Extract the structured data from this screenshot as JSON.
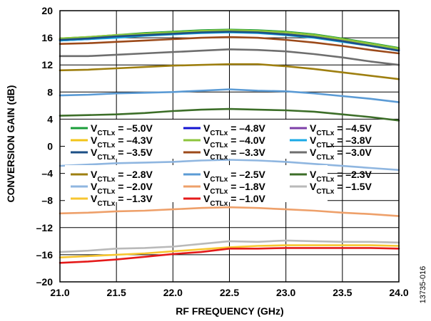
{
  "chart_data": {
    "type": "line",
    "title": "",
    "xlabel": "RF FREQUENCY (GHz)",
    "ylabel": "CONVERSION GAIN (dB)",
    "xlim": [
      21.0,
      24.0
    ],
    "ylim": [
      -20,
      20
    ],
    "x_ticks": [
      "21.0",
      "21.5",
      "22.0",
      "22.5",
      "23.0",
      "23.5",
      "24.0"
    ],
    "y_ticks": [
      "20",
      "16",
      "12",
      "8",
      "4",
      "0",
      "–4",
      "–8",
      "–12",
      "–16",
      "–20"
    ],
    "grid": true,
    "legend_placement": "center",
    "figure_id": "13735-016",
    "x": [
      21.0,
      21.25,
      21.5,
      21.75,
      22.0,
      22.25,
      22.5,
      22.75,
      23.0,
      23.25,
      23.5,
      23.75,
      24.0
    ],
    "series": [
      {
        "name": "V",
        "sub": "CTLx",
        "value": " = –5.0V",
        "color": "#1a9e3a",
        "values": [
          15.9,
          16.1,
          16.4,
          16.7,
          16.9,
          17.1,
          17.2,
          17.1,
          16.9,
          16.5,
          15.9,
          15.2,
          14.5
        ]
      },
      {
        "name": "V",
        "sub": "CTLx",
        "value": " = –4.8V",
        "color": "#1414d2",
        "values": [
          15.6,
          15.8,
          16.1,
          16.4,
          16.6,
          16.8,
          16.9,
          16.8,
          16.6,
          16.2,
          15.6,
          14.9,
          14.2
        ]
      },
      {
        "name": "V",
        "sub": "CTLx",
        "value": " = –4.5V",
        "color": "#7e3fa8",
        "values": [
          15.7,
          15.9,
          16.2,
          16.5,
          16.7,
          16.9,
          17.0,
          16.9,
          16.7,
          16.3,
          15.7,
          15.0,
          14.3
        ]
      },
      {
        "name": "V",
        "sub": "CTLx",
        "value": " = –4.3V",
        "color": "#f2c419",
        "values": [
          15.8,
          16.0,
          16.3,
          16.6,
          16.8,
          17.0,
          17.1,
          17.0,
          16.8,
          16.4,
          15.8,
          15.1,
          14.4
        ]
      },
      {
        "name": "V",
        "sub": "CTLx",
        "value": " = –4.0V",
        "color": "#8cc43c",
        "values": [
          15.9,
          16.1,
          16.4,
          16.6,
          16.8,
          17.0,
          17.1,
          17.0,
          16.8,
          16.4,
          15.8,
          15.1,
          14.4
        ]
      },
      {
        "name": "V",
        "sub": "CTLx",
        "value": " = –3.8V",
        "color": "#1aa9e6",
        "values": [
          15.6,
          15.8,
          16.0,
          16.3,
          16.5,
          16.7,
          16.8,
          16.7,
          16.4,
          16.0,
          15.4,
          14.8,
          14.1
        ]
      },
      {
        "name": "V",
        "sub": "CTLx",
        "value": " = –3.5V",
        "color": "#1c4f86",
        "values": [
          15.7,
          15.9,
          16.2,
          16.4,
          16.6,
          16.8,
          16.9,
          16.8,
          16.5,
          16.1,
          15.5,
          14.8,
          14.1
        ]
      },
      {
        "name": "V",
        "sub": "CTLx",
        "value": " = –3.3V",
        "color": "#9c4a1a",
        "values": [
          15.1,
          15.2,
          15.4,
          15.6,
          15.8,
          16.0,
          16.1,
          16.0,
          15.7,
          15.3,
          14.8,
          14.2,
          13.7
        ]
      },
      {
        "name": "V",
        "sub": "CTLx",
        "value": " = –3.0V",
        "color": "#6e6e6e",
        "values": [
          13.3,
          13.3,
          13.5,
          13.7,
          13.9,
          14.1,
          14.3,
          14.2,
          14.0,
          13.6,
          13.1,
          12.5,
          12.0
        ]
      },
      {
        "name": "V",
        "sub": "CTLx",
        "value": " = –2.8V",
        "color": "#9e7f10",
        "values": [
          11.2,
          11.3,
          11.5,
          11.7,
          11.9,
          12.0,
          12.1,
          12.1,
          11.8,
          11.4,
          10.9,
          10.4,
          9.9
        ]
      },
      {
        "name": "V",
        "sub": "CTLx",
        "value": " = –2.5V",
        "color": "#5b9bd5",
        "values": [
          7.5,
          7.6,
          7.8,
          7.9,
          8.0,
          8.2,
          8.4,
          8.2,
          8.1,
          7.8,
          7.4,
          7.0,
          6.5
        ]
      },
      {
        "name": "V",
        "sub": "CTLx",
        "value": " = –2.3V",
        "color": "#3c6e28",
        "values": [
          4.5,
          4.6,
          4.7,
          4.9,
          5.2,
          5.4,
          5.5,
          5.4,
          5.3,
          5.1,
          4.7,
          4.3,
          3.8
        ]
      },
      {
        "name": "V",
        "sub": "CTLx",
        "value": " = –2.0V",
        "color": "#8fb6e0",
        "values": [
          -2.9,
          -2.7,
          -2.5,
          -2.4,
          -2.3,
          -2.1,
          -2.0,
          -2.1,
          -2.3,
          -2.6,
          -2.9,
          -3.2,
          -3.5
        ]
      },
      {
        "name": "V",
        "sub": "CTLx",
        "value": " = –1.8V",
        "color": "#eea06a",
        "values": [
          -9.9,
          -9.8,
          -9.6,
          -9.5,
          -9.3,
          -9.1,
          -9.0,
          -9.1,
          -9.3,
          -9.5,
          -9.8,
          -10.0,
          -10.3
        ]
      },
      {
        "name": "V",
        "sub": "CTLx",
        "value": " = –1.5V",
        "color": "#b9b9b9",
        "values": [
          -15.6,
          -15.4,
          -15.1,
          -15.0,
          -14.8,
          -14.4,
          -14.0,
          -14.1,
          -13.9,
          -14.0,
          -14.1,
          -14.1,
          -14.2
        ]
      },
      {
        "name": "V",
        "sub": "CTLx",
        "value": " = –1.3V",
        "color": "#f7c630",
        "values": [
          -16.4,
          -16.2,
          -16.0,
          -15.8,
          -15.5,
          -15.2,
          -14.9,
          -14.7,
          -14.6,
          -14.6,
          -14.6,
          -14.6,
          -14.7
        ]
      },
      {
        "name": "V",
        "sub": "CTLx",
        "value": " = –1.0V",
        "color": "#e51a1a",
        "values": [
          -17.2,
          -17.0,
          -16.7,
          -16.3,
          -15.9,
          -15.6,
          -15.1,
          -15.1,
          -15.0,
          -15.0,
          -15.0,
          -15.0,
          -15.1
        ]
      }
    ]
  }
}
